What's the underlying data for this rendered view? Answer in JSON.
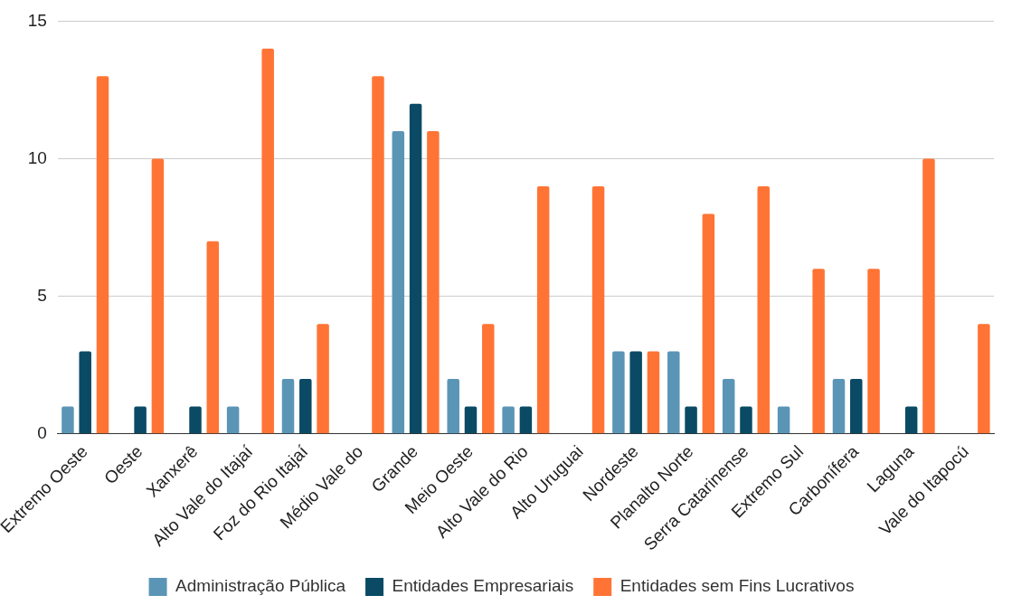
{
  "chart_data": {
    "type": "bar",
    "categories": [
      "Extremo Oeste",
      "Oeste",
      "Xanxerê",
      "Alto Vale do Itajaí",
      "Foz do Rio Itajaí",
      "Médio Vale do",
      "Grande",
      "Meio Oeste",
      "Alto Vale do Rio",
      "Alto Uruguai",
      "Nordeste",
      "Planalto Norte",
      "Serra Catarinense",
      "Extremo Sul",
      "Carbonífera",
      "Laguna",
      "Vale do Itapocú"
    ],
    "series": [
      {
        "name": "Administração Pública",
        "color": "#5b95b6",
        "values": [
          1,
          0,
          0,
          1,
          2,
          0,
          11,
          2,
          1,
          0,
          3,
          3,
          2,
          1,
          2,
          0,
          0
        ]
      },
      {
        "name": "Entidades Empresariais",
        "color": "#0b4a64",
        "values": [
          3,
          1,
          1,
          0,
          2,
          0,
          12,
          1,
          1,
          0,
          3,
          1,
          1,
          0,
          2,
          1,
          0
        ]
      },
      {
        "name": "Entidades sem Fins Lucrativos",
        "color": "#ff7435",
        "values": [
          13,
          10,
          7,
          14,
          4,
          13,
          11,
          4,
          9,
          9,
          3,
          8,
          9,
          6,
          6,
          10,
          4
        ]
      }
    ],
    "ylim": [
      0,
      15
    ],
    "yticks": [
      0,
      5,
      10,
      15
    ],
    "grid": "y",
    "legend": "bottom"
  }
}
